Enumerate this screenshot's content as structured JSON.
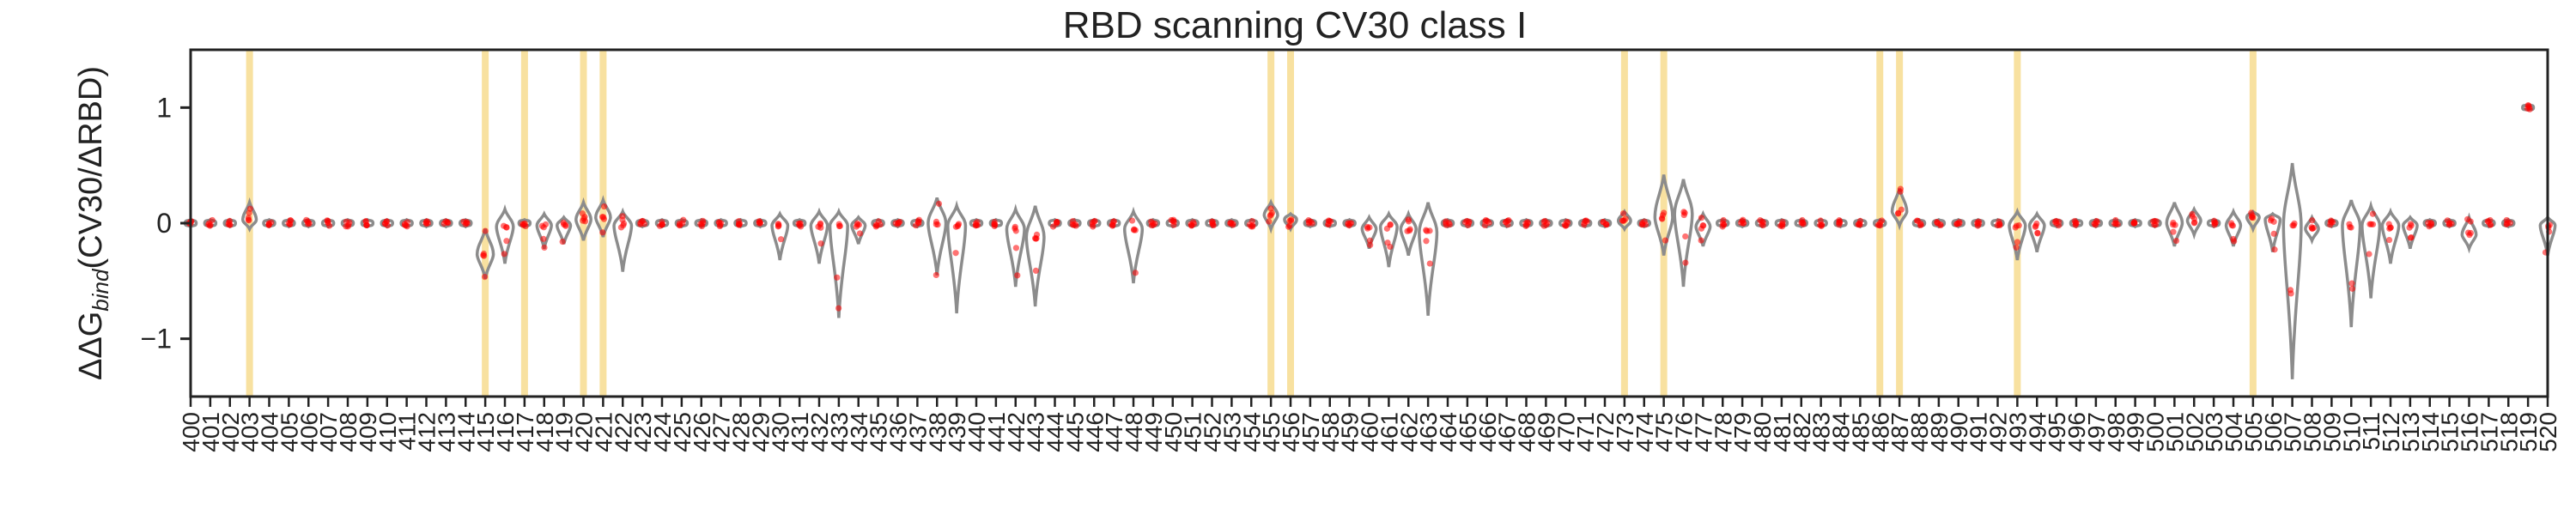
{
  "chart_data": {
    "type": "violin",
    "title": "RBD scanning CV30 class I",
    "ylabel_prefix": "ΔΔG",
    "ylabel_subscript": "bind",
    "ylabel_suffix": "(CV30/ΔRBD)",
    "ylim": [
      -1.5,
      1.5
    ],
    "yticks": [
      -1,
      0,
      1
    ],
    "ytick_labels": [
      "−1",
      "0",
      "1"
    ],
    "x_start": 400,
    "x_end": 520,
    "highlight_color": "#f7dc8f",
    "violin_color": "#8c8c8c",
    "point_color": "#ff0000",
    "highlight_sites": [
      403,
      415,
      417,
      420,
      421,
      455,
      456,
      473,
      475,
      486,
      487,
      493,
      505
    ],
    "violins": [
      {
        "site": 403,
        "median": 0.03,
        "min": -0.05,
        "max": 0.18
      },
      {
        "site": 415,
        "median": -0.27,
        "min": -0.48,
        "max": -0.05
      },
      {
        "site": 416,
        "median": -0.03,
        "min": -0.35,
        "max": 0.12
      },
      {
        "site": 418,
        "median": -0.02,
        "min": -0.22,
        "max": 0.08
      },
      {
        "site": 419,
        "median": -0.02,
        "min": -0.18,
        "max": 0.05
      },
      {
        "site": 420,
        "median": 0.03,
        "min": -0.15,
        "max": 0.18
      },
      {
        "site": 421,
        "median": 0.05,
        "min": -0.12,
        "max": 0.2
      },
      {
        "site": 422,
        "median": -0.02,
        "min": -0.42,
        "max": 0.1
      },
      {
        "site": 430,
        "median": -0.02,
        "min": -0.32,
        "max": 0.08
      },
      {
        "site": 432,
        "median": -0.02,
        "min": -0.35,
        "max": 0.1
      },
      {
        "site": 433,
        "median": -0.02,
        "min": -0.82,
        "max": 0.1
      },
      {
        "site": 434,
        "median": -0.02,
        "min": -0.18,
        "max": 0.05
      },
      {
        "site": 438,
        "median": 0.0,
        "min": -0.45,
        "max": 0.22
      },
      {
        "site": 439,
        "median": -0.02,
        "min": -0.78,
        "max": 0.15
      },
      {
        "site": 442,
        "median": -0.05,
        "min": -0.55,
        "max": 0.12
      },
      {
        "site": 443,
        "median": -0.12,
        "min": -0.72,
        "max": 0.15
      },
      {
        "site": 448,
        "median": -0.05,
        "min": -0.52,
        "max": 0.1
      },
      {
        "site": 455,
        "median": 0.07,
        "min": -0.05,
        "max": 0.18
      },
      {
        "site": 456,
        "median": 0.03,
        "min": -0.05,
        "max": 0.08
      },
      {
        "site": 460,
        "median": -0.05,
        "min": -0.22,
        "max": 0.05
      },
      {
        "site": 461,
        "median": -0.03,
        "min": -0.38,
        "max": 0.08
      },
      {
        "site": 462,
        "median": -0.05,
        "min": -0.28,
        "max": 0.08
      },
      {
        "site": 463,
        "median": -0.08,
        "min": -0.8,
        "max": 0.18
      },
      {
        "site": 473,
        "median": 0.02,
        "min": -0.05,
        "max": 0.1
      },
      {
        "site": 475,
        "median": 0.05,
        "min": -0.28,
        "max": 0.42
      },
      {
        "site": 476,
        "median": 0.08,
        "min": -0.55,
        "max": 0.38
      },
      {
        "site": 477,
        "median": -0.03,
        "min": -0.2,
        "max": 0.08
      },
      {
        "site": 487,
        "median": 0.1,
        "min": -0.02,
        "max": 0.3
      },
      {
        "site": 493,
        "median": -0.02,
        "min": -0.32,
        "max": 0.1
      },
      {
        "site": 494,
        "median": -0.02,
        "min": -0.25,
        "max": 0.08
      },
      {
        "site": 501,
        "median": 0.0,
        "min": -0.2,
        "max": 0.18
      },
      {
        "site": 502,
        "median": 0.02,
        "min": -0.1,
        "max": 0.12
      },
      {
        "site": 504,
        "median": -0.02,
        "min": -0.2,
        "max": 0.1
      },
      {
        "site": 505,
        "median": 0.05,
        "min": -0.05,
        "max": 0.1
      },
      {
        "site": 506,
        "median": 0.03,
        "min": -0.25,
        "max": 0.08
      },
      {
        "site": 507,
        "median": -0.02,
        "min": -1.35,
        "max": 0.52
      },
      {
        "site": 508,
        "median": -0.05,
        "min": -0.15,
        "max": 0.05
      },
      {
        "site": 510,
        "median": -0.02,
        "min": -0.9,
        "max": 0.2
      },
      {
        "site": 511,
        "median": -0.02,
        "min": -0.65,
        "max": 0.15
      },
      {
        "site": 512,
        "median": -0.02,
        "min": -0.35,
        "max": 0.1
      },
      {
        "site": 513,
        "median": -0.02,
        "min": -0.22,
        "max": 0.05
      },
      {
        "site": 516,
        "median": -0.1,
        "min": -0.22,
        "max": 0.05
      },
      {
        "site": 519,
        "median": 1.0,
        "min": 0.98,
        "max": 1.02
      },
      {
        "site": 520,
        "median": -0.02,
        "min": -0.28,
        "max": 0.05
      }
    ]
  }
}
